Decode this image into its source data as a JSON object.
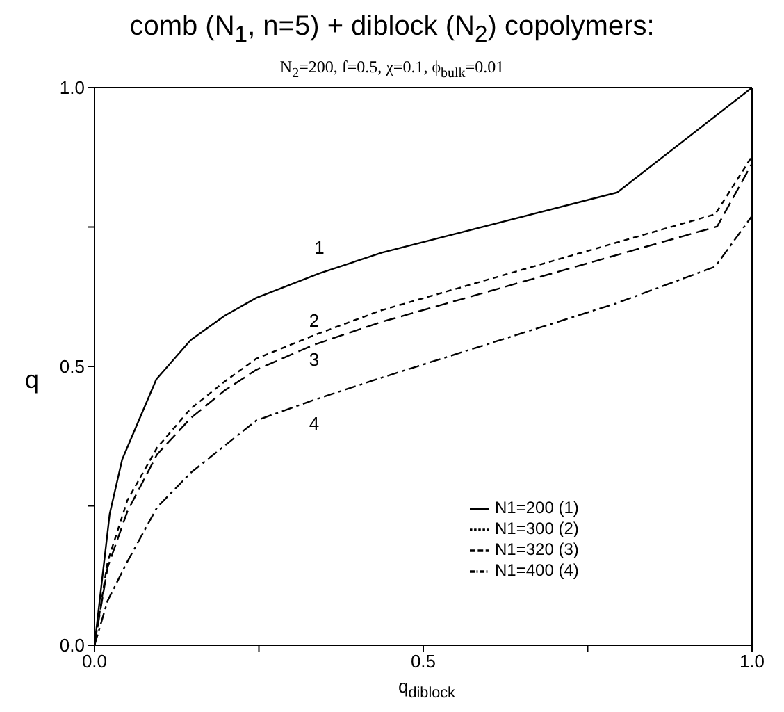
{
  "chart_data": {
    "type": "line",
    "title": "comb (N$_{1}$, n=5) + diblock (N$_{2}$) copolymers:",
    "subtitle": "N$_{2}$=200, f=0.5, χ=0.1, ϕ$_{bulk}$=0.01",
    "xlabel": "q$_{diblock}$",
    "ylabel": "q",
    "xlim": [
      0,
      1
    ],
    "ylim": [
      0,
      1
    ],
    "xticks": [
      {
        "value": 0,
        "label": "0.0"
      },
      {
        "value": 0.25,
        "label": null
      },
      {
        "value": 0.5,
        "label": "0.5"
      },
      {
        "value": 0.75,
        "label": null
      },
      {
        "value": 1,
        "label": "1.0"
      }
    ],
    "yticks": [
      {
        "value": 0,
        "label": "0.0"
      },
      {
        "value": 0.25,
        "label": null
      },
      {
        "value": 0.5,
        "label": "0.5"
      },
      {
        "value": 0.75,
        "label": null
      },
      {
        "value": 1,
        "label": "1.0"
      }
    ],
    "grid": false,
    "legend": "bottom right",
    "marker": "none",
    "series": [
      {
        "name": "N1=200 (1)",
        "color": "#000000",
        "line_style": "solid",
        "x": [
          0,
          0.023,
          0.042,
          0.094,
          0.146,
          0.198,
          0.246,
          0.342,
          0.437,
          0.795,
          1
        ],
        "values": [
          0,
          0.235,
          0.333,
          0.477,
          0.547,
          0.591,
          0.623,
          0.667,
          0.704,
          0.812,
          1
        ]
      },
      {
        "name": "N1=300 (2)",
        "color": "#000000",
        "line_style": "dashed",
        "x": [
          0,
          0.02,
          0.05,
          0.095,
          0.146,
          0.198,
          0.246,
          0.334,
          0.437,
          0.944,
          1
        ],
        "values": [
          0,
          0.15,
          0.26,
          0.354,
          0.424,
          0.473,
          0.514,
          0.556,
          0.601,
          0.773,
          0.877
        ]
      },
      {
        "name": "N1=320 (3)",
        "color": "#000000",
        "line_style": "longdash",
        "x": [
          0,
          0.02,
          0.05,
          0.095,
          0.146,
          0.198,
          0.246,
          0.334,
          0.437,
          0.947,
          1
        ],
        "values": [
          0,
          0.14,
          0.24,
          0.342,
          0.407,
          0.457,
          0.494,
          0.539,
          0.58,
          0.751,
          0.864
        ]
      },
      {
        "name": "N1=400 (4)",
        "color": "#000000",
        "line_style": "dashdot",
        "x": [
          0,
          0.02,
          0.05,
          0.095,
          0.146,
          0.198,
          0.246,
          0.334,
          0.437,
          0.793,
          0.944,
          1
        ],
        "values": [
          0,
          0.08,
          0.15,
          0.247,
          0.309,
          0.358,
          0.403,
          0.44,
          0.48,
          0.613,
          0.679,
          0.77
        ]
      }
    ],
    "annotations": [
      "1",
      "2",
      "3",
      "4"
    ]
  }
}
